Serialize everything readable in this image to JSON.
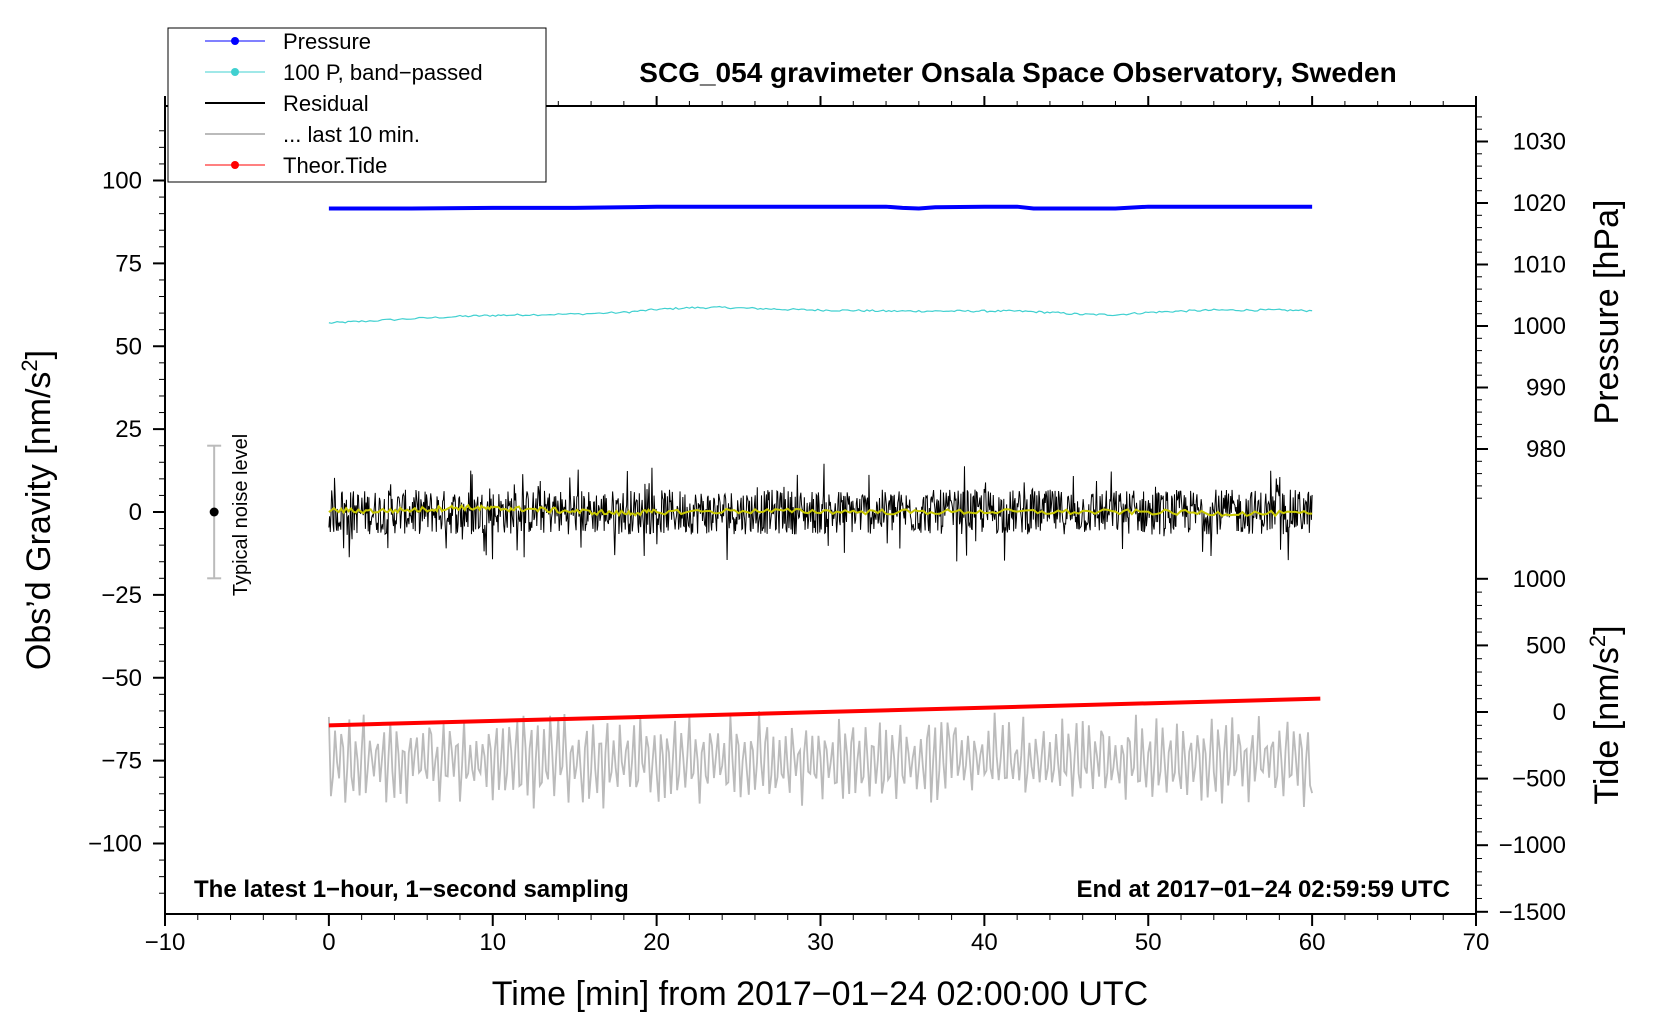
{
  "chart_data": {
    "type": "line",
    "title": "SCG_054 gravimeter Onsala Space Observatory, Sweden",
    "xlabel": "Time [min] from 2017−01−24 02:00:00 UTC",
    "ylabel_main": "Obs’d Gravity [nm/s",
    "ylabel_main_sup": "2",
    "ylabel_main_tail": "]",
    "ylabel_pressure": "Pressure [hPa]",
    "ylabel_tide": "Tide [nm/s",
    "ylabel_tide_sup": "2",
    "ylabel_tide_tail": "]",
    "xlim": [
      -10,
      70
    ],
    "ylim": [
      -120,
      120
    ],
    "pressure_axis_range": [
      970,
      1035
    ],
    "tide_axis_range": [
      -1500,
      1000
    ],
    "x_ticks": [
      -10,
      0,
      10,
      20,
      30,
      40,
      50,
      60,
      70
    ],
    "x_tick_labels": [
      "−10",
      "0",
      "10",
      "20",
      "30",
      "40",
      "50",
      "60",
      "70"
    ],
    "y_ticks": [
      100,
      75,
      50,
      25,
      0,
      -25,
      -50,
      -75,
      -100
    ],
    "y_tick_labels": [
      "100",
      "75",
      "50",
      "25",
      "0",
      "−25",
      "−50",
      "−75",
      "−100"
    ],
    "pressure_ticks": [
      1030,
      1020,
      1010,
      1000,
      990,
      980
    ],
    "pressure_tick_labels": [
      "1030",
      "1020",
      "1010",
      "1000",
      "990",
      "980"
    ],
    "tide_ticks": [
      1000,
      500,
      0,
      -500,
      -1000,
      -1500
    ],
    "tide_tick_labels": [
      "1000",
      "500",
      "0",
      "−500",
      "−1000",
      "−1500"
    ],
    "annotation_left": "The latest 1−hour, 1−second sampling",
    "annotation_right": "End at 2017−01−24 02:59:59 UTC",
    "noise_label": "Typical noise level",
    "noise_bar": {
      "x": -7,
      "center": 0,
      "half_range": 20
    },
    "legend": [
      {
        "label": "Pressure",
        "color": "#0000ff",
        "marker": true,
        "width": 1
      },
      {
        "label": "100 P, band−passed",
        "color": "#40d0d0",
        "marker": true,
        "width": 1
      },
      {
        "label": "Residual",
        "color": "#000000",
        "marker": false,
        "width": 2
      },
      {
        "label": "... last 10 min.",
        "color": "#bbbbbb",
        "marker": false,
        "width": 2
      },
      {
        "label": "Theor.Tide",
        "color": "#ff0000",
        "marker": true,
        "width": 1
      }
    ],
    "series": [
      {
        "name": "Pressure",
        "color": "#0000ff",
        "axis": "pressure",
        "x": [
          0,
          5,
          10,
          15,
          18,
          20,
          25,
          30,
          34,
          35,
          36,
          37,
          40,
          42,
          43,
          45,
          48,
          50,
          55,
          60
        ],
        "values": [
          1019.1,
          1019.1,
          1019.2,
          1019.2,
          1019.3,
          1019.4,
          1019.4,
          1019.4,
          1019.4,
          1019.2,
          1019.1,
          1019.3,
          1019.4,
          1019.4,
          1019.1,
          1019.1,
          1019.1,
          1019.4,
          1019.4,
          1019.4
        ]
      },
      {
        "name": "100 P, band−passed",
        "color": "#40d0d0",
        "axis": "main",
        "x": [
          0,
          2,
          5,
          8,
          10,
          12,
          15,
          18,
          20,
          22,
          24,
          26,
          28,
          30,
          32,
          34,
          36,
          38,
          40,
          42,
          44,
          46,
          48,
          50,
          52,
          54,
          56,
          58,
          60
        ],
        "values": [
          57,
          57.5,
          58.3,
          59,
          59.3,
          59.5,
          59.7,
          60.2,
          61.1,
          61.6,
          61.7,
          61.4,
          61.1,
          60.9,
          60.8,
          60.6,
          60.6,
          60.6,
          60.6,
          60.6,
          60.2,
          59.6,
          59.5,
          60.2,
          60.6,
          60.9,
          60.9,
          60.9,
          60.7
        ]
      },
      {
        "name": "Residual",
        "color": "#000000",
        "axis": "main",
        "x_range": [
          0,
          60
        ],
        "mean": 0,
        "amplitude_nm_s2": 15
      },
      {
        "name": "Residual (smoothed)",
        "color": "#c8c800",
        "axis": "main",
        "x": [
          0,
          3,
          6,
          8,
          10,
          12,
          15,
          18,
          20,
          25,
          30,
          35,
          40,
          45,
          50,
          55,
          60
        ],
        "values": [
          0.5,
          0.3,
          0.8,
          1.4,
          1.0,
          0.9,
          0.2,
          -0.4,
          0,
          0.3,
          0.2,
          0,
          0.1,
          0,
          0,
          -0.4,
          -0.5
        ]
      },
      {
        "name": "... last 10 min.",
        "color": "#bbbbbb",
        "axis": "main",
        "x_range": [
          0,
          60
        ],
        "mean": -75,
        "amplitude_nm_s2": 12
      },
      {
        "name": "Theor.Tide",
        "color": "#ff0000",
        "axis": "tide",
        "x": [
          0,
          60.5
        ],
        "values": [
          -100,
          100
        ]
      }
    ]
  }
}
